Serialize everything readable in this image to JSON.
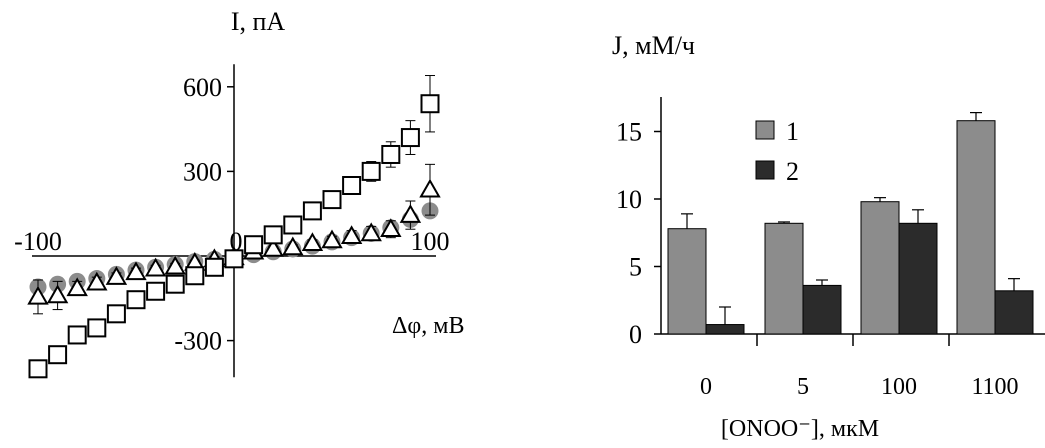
{
  "chart_data": [
    {
      "type": "scatter",
      "title": "",
      "ylabel": "I, пА",
      "xlabel": "Δφ, мВ",
      "xlim": [
        -100,
        100
      ],
      "ylim": [
        -430,
        680
      ],
      "y_ticks": [
        {
          "value": 600,
          "label": "600"
        },
        {
          "value": 300,
          "label": "300"
        },
        {
          "value": -300,
          "label": "-300"
        }
      ],
      "x_ticks": [
        {
          "value": -100,
          "label": "-100"
        },
        {
          "value": 0,
          "label": "0"
        },
        {
          "value": 100,
          "label": "100"
        }
      ],
      "colors": {
        "squares": "#000000",
        "triangles": "#000000",
        "circles": "#8c8c8c"
      },
      "series": [
        {
          "marker": "square",
          "x": [
            -100,
            -90,
            -80,
            -70,
            -60,
            -50,
            -40,
            -30,
            -20,
            -10,
            0,
            10,
            20,
            30,
            40,
            50,
            60,
            70,
            80,
            90,
            100
          ],
          "y": [
            -400,
            -350,
            -280,
            -255,
            -205,
            -155,
            -125,
            -100,
            -70,
            -40,
            -10,
            40,
            75,
            110,
            160,
            200,
            250,
            300,
            360,
            420,
            540
          ],
          "err": [
            25,
            25,
            25,
            20,
            20,
            18,
            15,
            15,
            12,
            10,
            8,
            12,
            15,
            20,
            20,
            22,
            25,
            35,
            45,
            60,
            100
          ]
        },
        {
          "marker": "triangle",
          "x": [
            -100,
            -90,
            -80,
            -70,
            -60,
            -50,
            -40,
            -30,
            -20,
            -10,
            0,
            10,
            20,
            30,
            40,
            50,
            60,
            70,
            80,
            90,
            100
          ],
          "y": [
            -145,
            -140,
            -115,
            -95,
            -75,
            -58,
            -45,
            -38,
            -25,
            -12,
            -5,
            15,
            25,
            30,
            45,
            55,
            70,
            80,
            95,
            145,
            235
          ],
          "err": [
            60,
            50,
            25,
            20,
            15,
            15,
            12,
            12,
            10,
            10,
            8,
            10,
            10,
            10,
            12,
            15,
            20,
            25,
            30,
            50,
            90
          ]
        },
        {
          "marker": "circle",
          "x": [
            -100,
            -90,
            -80,
            -70,
            -60,
            -50,
            -40,
            -30,
            -20,
            -10,
            0,
            10,
            20,
            30,
            40,
            50,
            60,
            70,
            80,
            90,
            100
          ],
          "y": [
            -110,
            -100,
            -90,
            -80,
            -65,
            -50,
            -40,
            -30,
            -20,
            -12,
            -5,
            5,
            15,
            25,
            35,
            50,
            65,
            80,
            100,
            130,
            160
          ]
        }
      ]
    },
    {
      "type": "bar",
      "title": "",
      "ylabel": "J, мМ/ч",
      "xlabel": "[ONOO⁻], мкМ",
      "ylim": [
        0,
        18
      ],
      "y_ticks": [
        {
          "value": 0,
          "label": "0"
        },
        {
          "value": 5,
          "label": "5"
        },
        {
          "value": 10,
          "label": "10"
        },
        {
          "value": 15,
          "label": "15"
        }
      ],
      "categories": [
        "0",
        "5",
        "100",
        "1100"
      ],
      "legend_position": "top-left",
      "series": [
        {
          "name": "1",
          "color": "#8c8c8c",
          "values": [
            7.8,
            8.2,
            9.8,
            15.8
          ],
          "err": [
            1.1,
            0.1,
            0.3,
            0.6
          ]
        },
        {
          "name": "2",
          "color": "#2b2b2b",
          "values": [
            0.7,
            3.6,
            8.2,
            3.2
          ],
          "err": [
            1.3,
            0.4,
            1.0,
            0.9
          ]
        }
      ]
    }
  ]
}
